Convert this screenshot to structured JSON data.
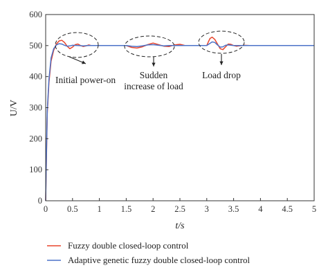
{
  "chart_data": {
    "type": "line",
    "xlabel": "t/s",
    "ylabel": "U/V",
    "xlim": [
      0,
      5
    ],
    "ylim": [
      0,
      600
    ],
    "x_ticks": [
      0,
      0.5,
      1,
      1.5,
      2,
      2.5,
      3,
      3.5,
      4,
      4.5,
      5
    ],
    "x_tick_labels": [
      "0",
      "0.5",
      "1",
      "1.5",
      "2",
      "2.5",
      "3",
      "3.5",
      "4",
      "4.5",
      "5"
    ],
    "y_ticks": [
      0,
      100,
      200,
      300,
      400,
      500,
      600
    ],
    "y_tick_labels": [
      "0",
      "100",
      "200",
      "300",
      "400",
      "500",
      "600"
    ],
    "grid": false,
    "legend_position": "bottom",
    "series": [
      {
        "name": "Fuzzy double closed-loop control",
        "color": "#e8452c",
        "x": [
          0,
          0.01,
          0.03,
          0.06,
          0.1,
          0.15,
          0.2,
          0.25,
          0.3,
          0.35,
          0.4,
          0.45,
          0.5,
          0.55,
          0.6,
          0.65,
          0.7,
          0.75,
          0.8,
          0.85,
          0.9,
          1.0,
          1.5,
          1.55,
          1.6,
          1.7,
          1.8,
          1.9,
          2.0,
          2.1,
          2.2,
          2.3,
          2.4,
          2.5,
          2.6,
          3.0,
          3.03,
          3.06,
          3.1,
          3.15,
          3.2,
          3.25,
          3.3,
          3.35,
          3.4,
          3.45,
          3.5,
          3.55,
          3.6,
          3.7,
          3.8,
          4.0,
          4.5,
          5.0
        ],
        "y": [
          0,
          100,
          280,
          380,
          450,
          485,
          505,
          515,
          517,
          510,
          498,
          490,
          495,
          503,
          505,
          500,
          497,
          499,
          502,
          500,
          500,
          500,
          500,
          497,
          494,
          492,
          496,
          503,
          508,
          503,
          498,
          497,
          502,
          504,
          500,
          500,
          512,
          523,
          527,
          520,
          505,
          490,
          487,
          496,
          505,
          504,
          500,
          498,
          499,
          501,
          500,
          500,
          500,
          500
        ]
      },
      {
        "name": "Adaptive genetic fuzzy double closed-loop control",
        "color": "#4b72c8",
        "x": [
          0,
          0.01,
          0.03,
          0.06,
          0.1,
          0.15,
          0.2,
          0.25,
          0.3,
          0.35,
          0.4,
          0.45,
          0.5,
          0.6,
          0.7,
          0.8,
          1.0,
          1.5,
          1.6,
          1.7,
          1.8,
          1.9,
          2.0,
          2.1,
          2.2,
          2.3,
          2.5,
          3.0,
          3.05,
          3.1,
          3.15,
          3.2,
          3.25,
          3.3,
          3.35,
          3.4,
          3.5,
          3.6,
          4.0,
          4.5,
          5.0
        ],
        "y": [
          0,
          110,
          290,
          390,
          460,
          490,
          502,
          506,
          505,
          501,
          498,
          499,
          501,
          500,
          499,
          500,
          500,
          500,
          498,
          497,
          499,
          502,
          503,
          501,
          499,
          500,
          500,
          500,
          506,
          512,
          510,
          502,
          495,
          496,
          501,
          502,
          500,
          500,
          500,
          500,
          500
        ]
      }
    ],
    "annotations": [
      {
        "text": "Initial power-on",
        "x": 0.35
      },
      {
        "lines": [
          "Sudden",
          "increase of load"
        ],
        "x": 2.0
      },
      {
        "text": "Load drop",
        "x": 3.25
      }
    ]
  }
}
